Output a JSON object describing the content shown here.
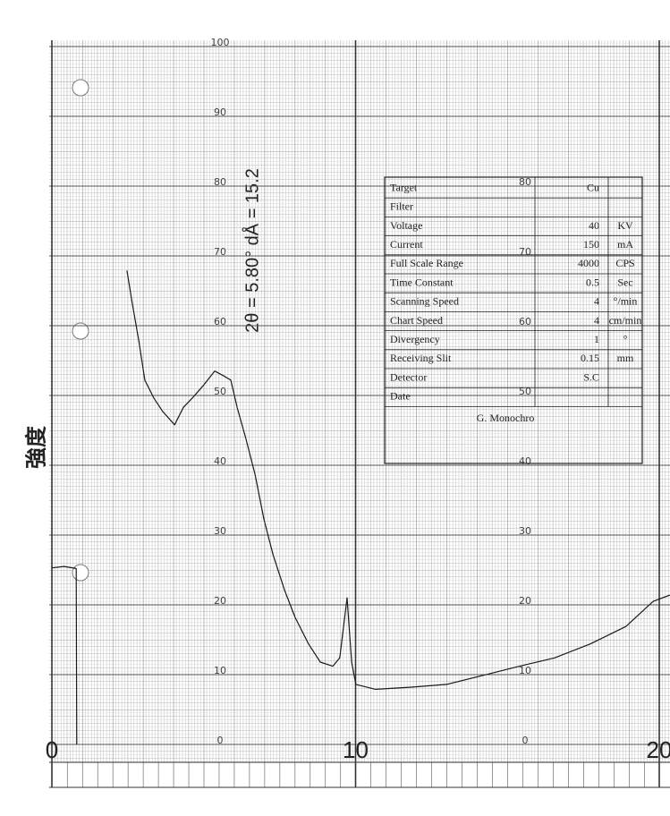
{
  "chart_data": {
    "type": "line",
    "y_axis_label": "強度",
    "annotation": "2θ = 5.80°  dÅ = 15.2",
    "x": [
      0,
      0.4,
      0.8,
      0.82,
      1.5,
      2.47,
      2.65,
      2.86,
      3.06,
      3.36,
      3.65,
      4.04,
      4.33,
      4.62,
      5.0,
      5.36,
      5.66,
      5.89,
      6.1,
      6.39,
      6.69,
      6.98,
      7.28,
      7.66,
      8.01,
      8.45,
      8.84,
      9.25,
      9.48,
      9.72,
      9.87,
      10.01,
      10.66,
      11.84,
      13.0,
      14.2,
      15.4,
      16.55,
      17.73,
      18.9,
      19.8,
      20.35
    ],
    "values": [
      25.3,
      25.5,
      25.2,
      0,
      null,
      67.9,
      63.1,
      57.9,
      52.2,
      49.6,
      47.7,
      45.8,
      48.3,
      49.6,
      51.5,
      53.5,
      52.8,
      52.2,
      48.3,
      43.8,
      38.7,
      32.3,
      27.2,
      22.1,
      18.2,
      14.4,
      11.8,
      11.2,
      12.4,
      21.0,
      11.8,
      8.6,
      7.9,
      8.2,
      8.6,
      9.9,
      11.2,
      12.4,
      14.4,
      16.9,
      20.5,
      21.4
    ],
    "color": "#1a1a1a",
    "xlim": [
      0,
      20
    ],
    "xticks": [
      0,
      10,
      20
    ],
    "ylim": [
      0,
      100
    ],
    "yticks": [
      0,
      10,
      20,
      30,
      40,
      50,
      60,
      70,
      80,
      90,
      100
    ],
    "grid": true
  },
  "table": {
    "rows": [
      [
        "Target",
        "Cu",
        ""
      ],
      [
        "Filter",
        "",
        ""
      ],
      [
        "Voltage",
        "40",
        "KV"
      ],
      [
        "Current",
        "150",
        "mA"
      ],
      [
        "Full Scale Range",
        "4000",
        "CPS"
      ],
      [
        "Time Constant",
        "0.5",
        "Sec"
      ],
      [
        "Scanning Speed",
        "4",
        "°/min"
      ],
      [
        "Chart Speed",
        "4",
        "cm/min"
      ],
      [
        "Divergency",
        "1",
        "°"
      ],
      [
        "Receiving Slit",
        "0.15",
        "mm"
      ],
      [
        "Detector",
        "S.C",
        ""
      ],
      [
        "Date",
        "",
        ""
      ]
    ],
    "footer": "G. Monochro"
  }
}
